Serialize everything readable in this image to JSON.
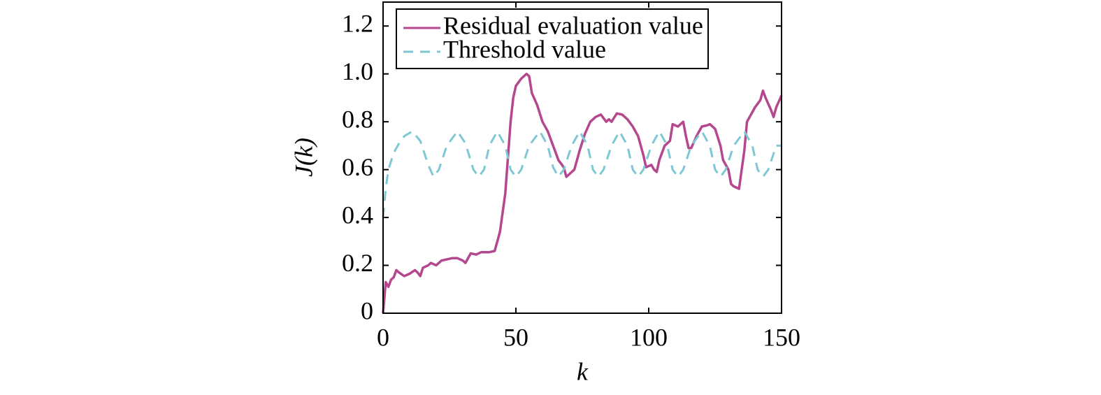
{
  "chart_data": {
    "type": "line",
    "x_label": "k",
    "y_label": "J(k)",
    "xlim": [
      0,
      150
    ],
    "xticks": [
      0,
      50,
      100,
      150
    ],
    "ylim": [
      0,
      1.3
    ],
    "yticks": [
      0,
      0.2,
      0.4,
      0.6,
      0.8,
      {
        "value": 1,
        "label": "1.0"
      },
      1.2
    ],
    "legend": "upper left",
    "series": [
      {
        "name": "Residual evaluation value",
        "color": "#b5478f",
        "dash": false,
        "x": [
          0,
          1,
          2,
          3,
          4,
          5,
          6,
          8,
          10,
          12,
          13,
          14,
          15,
          17,
          18,
          20,
          22,
          24,
          26,
          28,
          30,
          31,
          33,
          35,
          37,
          40,
          42,
          44,
          46,
          47,
          48,
          49,
          50,
          52,
          54,
          55,
          56,
          58,
          60,
          62,
          64,
          66,
          68,
          69,
          70,
          72,
          74,
          76,
          78,
          80,
          82,
          84,
          85,
          86,
          88,
          90,
          92,
          94,
          96,
          98,
          99,
          101,
          102,
          103,
          104,
          106,
          108,
          109,
          111,
          113,
          114,
          115,
          116,
          118,
          120,
          122,
          123,
          125,
          127,
          128,
          130,
          131,
          132,
          134,
          136,
          137,
          139,
          140,
          142,
          143,
          144,
          146,
          147,
          148,
          150
        ],
        "values": [
          0,
          0.13,
          0.11,
          0.14,
          0.15,
          0.18,
          0.17,
          0.155,
          0.165,
          0.18,
          0.17,
          0.155,
          0.19,
          0.2,
          0.21,
          0.2,
          0.22,
          0.225,
          0.23,
          0.23,
          0.22,
          0.21,
          0.25,
          0.245,
          0.255,
          0.255,
          0.26,
          0.34,
          0.5,
          0.65,
          0.8,
          0.9,
          0.95,
          0.98,
          1.0,
          0.99,
          0.92,
          0.87,
          0.8,
          0.76,
          0.7,
          0.64,
          0.61,
          0.57,
          0.58,
          0.6,
          0.68,
          0.75,
          0.8,
          0.82,
          0.83,
          0.8,
          0.81,
          0.8,
          0.835,
          0.83,
          0.81,
          0.78,
          0.74,
          0.66,
          0.61,
          0.62,
          0.6,
          0.59,
          0.64,
          0.7,
          0.72,
          0.79,
          0.78,
          0.8,
          0.74,
          0.69,
          0.69,
          0.74,
          0.78,
          0.785,
          0.79,
          0.77,
          0.7,
          0.64,
          0.6,
          0.54,
          0.53,
          0.52,
          0.68,
          0.8,
          0.84,
          0.86,
          0.89,
          0.93,
          0.9,
          0.85,
          0.82,
          0.86,
          0.91
        ]
      },
      {
        "name": "Threshold value",
        "color": "#7ec8d3",
        "dash": true,
        "x": [
          0,
          1,
          2,
          4,
          6,
          8,
          11,
          14,
          17,
          19,
          21,
          24,
          28,
          31,
          34,
          36,
          38,
          40,
          43,
          46,
          48,
          50,
          52,
          55,
          59,
          62,
          64,
          66,
          68,
          71,
          74,
          77,
          79,
          81,
          83,
          86,
          89,
          92,
          94,
          96,
          98,
          101,
          104,
          107,
          109,
          111,
          113,
          116,
          120,
          123,
          125,
          127,
          129,
          132,
          136,
          139,
          141,
          143,
          145,
          148,
          150
        ],
        "values": [
          0.4,
          0.52,
          0.6,
          0.67,
          0.71,
          0.74,
          0.76,
          0.72,
          0.62,
          0.57,
          0.6,
          0.7,
          0.76,
          0.71,
          0.6,
          0.57,
          0.6,
          0.7,
          0.76,
          0.7,
          0.6,
          0.57,
          0.6,
          0.7,
          0.76,
          0.7,
          0.61,
          0.57,
          0.6,
          0.7,
          0.76,
          0.7,
          0.6,
          0.57,
          0.6,
          0.7,
          0.76,
          0.7,
          0.6,
          0.57,
          0.6,
          0.7,
          0.76,
          0.7,
          0.6,
          0.57,
          0.6,
          0.7,
          0.76,
          0.7,
          0.6,
          0.57,
          0.6,
          0.7,
          0.76,
          0.7,
          0.6,
          0.57,
          0.6,
          0.7,
          0.7
        ]
      }
    ]
  }
}
